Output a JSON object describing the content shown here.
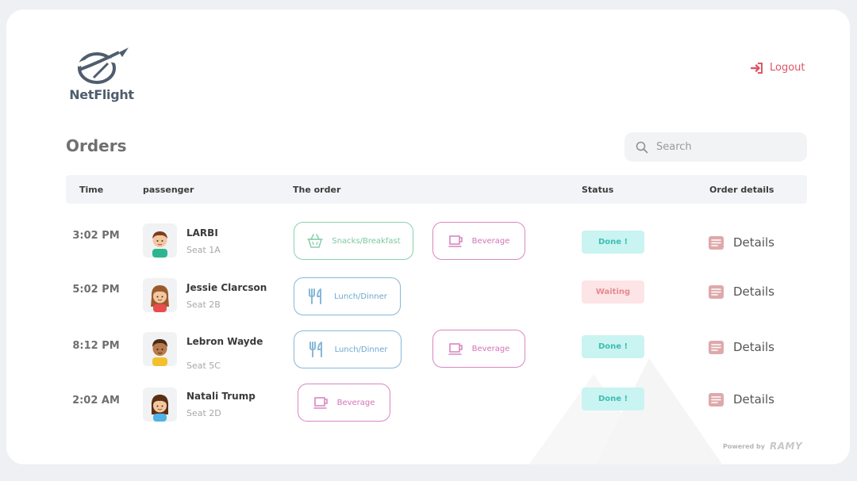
{
  "app": {
    "name": "NetFlight"
  },
  "header": {
    "logout_label": "Logout"
  },
  "page": {
    "title": "Orders"
  },
  "search": {
    "placeholder": "Search"
  },
  "table": {
    "columns": [
      "Time",
      "passenger",
      "The order",
      "Status",
      "Order details"
    ]
  },
  "rows": [
    {
      "time": "3:02 PM",
      "name": "LARBI",
      "seat": "Seat 1A",
      "orders": [
        {
          "label": "Snacks/Breakfast",
          "icon": "basket-icon",
          "color": "green"
        },
        {
          "label": "Beverage",
          "icon": "cup-icon",
          "color": "pink"
        }
      ],
      "status": "Done !",
      "details": "Details"
    },
    {
      "time": "5:02 PM",
      "name": "Jessie Clarcson",
      "seat": "Seat 2B",
      "orders": [
        {
          "label": "Lunch/Dinner",
          "icon": "cutlery-icon",
          "color": "blue"
        }
      ],
      "status": "Waiting",
      "details": "Details"
    },
    {
      "time": "8:12 PM",
      "name": "Lebron Wayde",
      "seat": "Seat 5C",
      "orders": [
        {
          "label": "Lunch/Dinner",
          "icon": "cutlery-icon",
          "color": "blue"
        },
        {
          "label": "Beverage",
          "icon": "cup-icon",
          "color": "pink"
        }
      ],
      "status": "Done !",
      "details": "Details"
    },
    {
      "time": "2:02 AM",
      "name": "Natali Trump",
      "seat": "Seat 2D",
      "orders": [
        {
          "label": "Beverage",
          "icon": "cup-icon",
          "color": "pink"
        }
      ],
      "status": "Done !",
      "details": "Details"
    }
  ],
  "footer": {
    "powered_by": "Powered by",
    "brand": "RAMY"
  },
  "colors": {
    "accent": "#e05468",
    "done_bg": "#c9f4f1",
    "waiting_bg": "#fde4e6",
    "green": "#8ad1ad",
    "pink": "#d987c1",
    "blue": "#86b8d8"
  }
}
